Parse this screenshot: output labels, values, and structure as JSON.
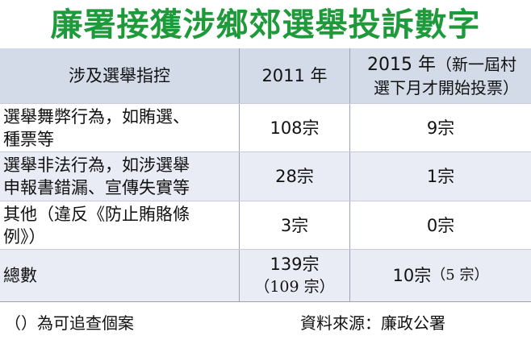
{
  "title": "廉署接獲涉鄉郊選舉投訴數字",
  "table": {
    "header": {
      "category": "涉及選舉指控",
      "year_2011": "2011 年",
      "year_2015_main": "2015 年",
      "year_2015_note_a": "（新一屆村",
      "year_2015_note_b": "選下月才開始投票）"
    },
    "rows": [
      {
        "category_line1": "選舉舞弊行為，如賄選、",
        "category_line2": "種票等",
        "v2011": "108宗",
        "v2015": "9宗"
      },
      {
        "category_line1": "選舉非法行為，如涉選舉",
        "category_line2": "申報書錯漏、宣傳失實等",
        "v2011": "28宗",
        "v2015": "1宗"
      },
      {
        "category_line1": "其他（違反《防止賄賂條",
        "category_line2": "例》）",
        "v2011": "3宗",
        "v2015": "0宗"
      },
      {
        "category_line1": "總數",
        "category_line2": "",
        "v2011": "139宗",
        "v2011_note": "（109 宗）",
        "v2015": "10宗",
        "v2015_note": "（5 宗）"
      }
    ]
  },
  "footer": {
    "note": "（）為可追查個案",
    "source": "資料來源：廉政公署"
  }
}
